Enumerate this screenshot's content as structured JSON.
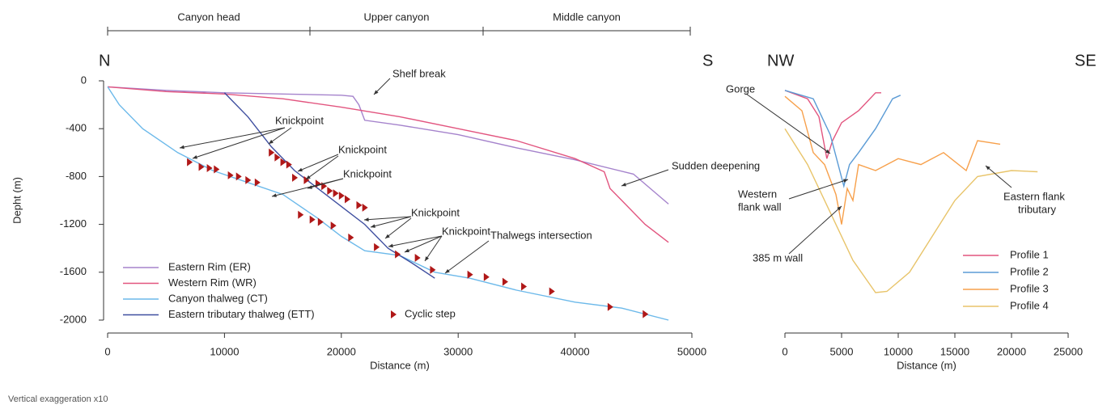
{
  "chart_data": [
    {
      "type": "line",
      "sections": [
        "Canyon head",
        "Upper canyon",
        "Middle canyon"
      ],
      "directions": [
        "N",
        "S"
      ],
      "xlabel": "Distance (m)",
      "ylabel": "Depht (m)",
      "note": "Vertical exaggeration x10",
      "xlim": [
        0,
        50000
      ],
      "xticks": [
        0,
        10000,
        20000,
        30000,
        40000,
        50000
      ],
      "ylim": [
        -2000,
        0
      ],
      "yticks": [
        0,
        -400,
        -800,
        -1200,
        -1600,
        -2000
      ],
      "legend": "lower left",
      "series": [
        {
          "name": "Eastern Rim (ER)",
          "color": "#a583cc",
          "x": [
            0,
            5000,
            10000,
            15000,
            20000,
            21000,
            21500,
            22000,
            25000,
            30000,
            35000,
            40000,
            45000,
            48000
          ],
          "values": [
            -50,
            -80,
            -100,
            -110,
            -120,
            -130,
            -200,
            -330,
            -370,
            -450,
            -560,
            -660,
            -780,
            -1030
          ]
        },
        {
          "name": "Western Rim (WR)",
          "color": "#e2557f",
          "x": [
            0,
            5000,
            10000,
            15000,
            20000,
            25000,
            30000,
            35000,
            40000,
            42500,
            43000,
            44000,
            46000,
            48000
          ],
          "values": [
            -50,
            -90,
            -110,
            -150,
            -220,
            -300,
            -400,
            -500,
            -650,
            -760,
            -900,
            -1000,
            -1200,
            -1350
          ]
        },
        {
          "name": "Canyon thalweg (CT)",
          "color": "#6cb9ea",
          "x": [
            0,
            1000,
            3000,
            6000,
            9000,
            12000,
            15000,
            18000,
            20000,
            22000,
            25000,
            28000,
            31000,
            35000,
            40000,
            44000,
            48000
          ],
          "values": [
            -50,
            -200,
            -400,
            -600,
            -750,
            -850,
            -950,
            -1150,
            -1300,
            -1420,
            -1460,
            -1600,
            -1650,
            -1750,
            -1850,
            -1900,
            -2000
          ]
        },
        {
          "name": "Eastern tributary thalweg (ETT)",
          "color": "#3f4fa0",
          "x": [
            10000,
            12000,
            14000,
            16000,
            18000,
            20000,
            22000,
            24000,
            26000,
            28000
          ],
          "values": [
            -100,
            -300,
            -550,
            -750,
            -900,
            -1050,
            -1200,
            -1400,
            -1520,
            -1650
          ]
        },
        {
          "name": "Cyclic step",
          "color": "#b01818",
          "marker": "triangle",
          "x": [
            7000,
            8000,
            8700,
            9300,
            10500,
            11200,
            12000,
            12800,
            14000,
            14500,
            15000,
            15500,
            16000,
            17000,
            18000,
            18500,
            19000,
            19500,
            20000,
            20500,
            21500,
            22000,
            16500,
            17500,
            18200,
            19300,
            20800,
            23000,
            24800,
            26500,
            27800,
            31000,
            32400,
            34000,
            35600,
            38000,
            43000,
            46000
          ],
          "values": [
            -680,
            -720,
            -730,
            -740,
            -790,
            -800,
            -830,
            -850,
            -600,
            -640,
            -680,
            -700,
            -810,
            -830,
            -860,
            -880,
            -920,
            -940,
            -960,
            -990,
            -1040,
            -1060,
            -1120,
            -1160,
            -1180,
            -1210,
            -1310,
            -1390,
            -1450,
            -1480,
            -1580,
            -1620,
            -1640,
            -1680,
            -1720,
            -1760,
            -1890,
            -1950
          ]
        }
      ],
      "annotations": [
        "Shelf break",
        "Knickpoint",
        "Knickpoint",
        "Knickpoint",
        "Knickpoint",
        "Knickpoint",
        "Sudden deepening",
        "Thalwegs intersection"
      ]
    },
    {
      "type": "line",
      "directions": [
        "NW",
        "SE"
      ],
      "xlabel": "Distance (m)",
      "xlim": [
        0,
        25000
      ],
      "xticks": [
        0,
        5000,
        10000,
        15000,
        20000,
        25000
      ],
      "ylim": [
        -2000,
        0
      ],
      "legend": "lower right",
      "series": [
        {
          "name": "Profile 1",
          "color": "#e2557f",
          "x": [
            0,
            2000,
            3000,
            3700,
            4200,
            5000,
            6500,
            8000,
            8500
          ],
          "values": [
            -80,
            -150,
            -300,
            -650,
            -500,
            -350,
            -250,
            -100,
            -100
          ]
        },
        {
          "name": "Profile 2",
          "color": "#5b9bd5",
          "x": [
            0,
            2500,
            4000,
            5200,
            5700,
            6500,
            8000,
            9500,
            10200
          ],
          "values": [
            -80,
            -150,
            -450,
            -880,
            -700,
            -600,
            -400,
            -150,
            -120
          ]
        },
        {
          "name": "Profile 3",
          "color": "#f7a04b",
          "x": [
            0,
            1500,
            2500,
            3500,
            4500,
            5000,
            5500,
            6000,
            6500,
            8000,
            10000,
            12000,
            14000,
            16000,
            17000,
            19000
          ],
          "values": [
            -130,
            -250,
            -600,
            -700,
            -950,
            -1200,
            -900,
            -1000,
            -700,
            -750,
            -650,
            -700,
            -600,
            -750,
            -500,
            -530
          ]
        },
        {
          "name": "Profile 4",
          "color": "#e8c46a",
          "x": [
            0,
            2000,
            4000,
            6000,
            8000,
            9000,
            11000,
            13000,
            15000,
            17000,
            20000,
            22300
          ],
          "values": [
            -400,
            -700,
            -1100,
            -1500,
            -1770,
            -1760,
            -1600,
            -1300,
            -1000,
            -800,
            -750,
            -760
          ]
        }
      ],
      "annotations": [
        "Gorge",
        "Western",
        "flank wall",
        "385 m wall",
        "Eastern flank",
        "tributary"
      ]
    }
  ]
}
